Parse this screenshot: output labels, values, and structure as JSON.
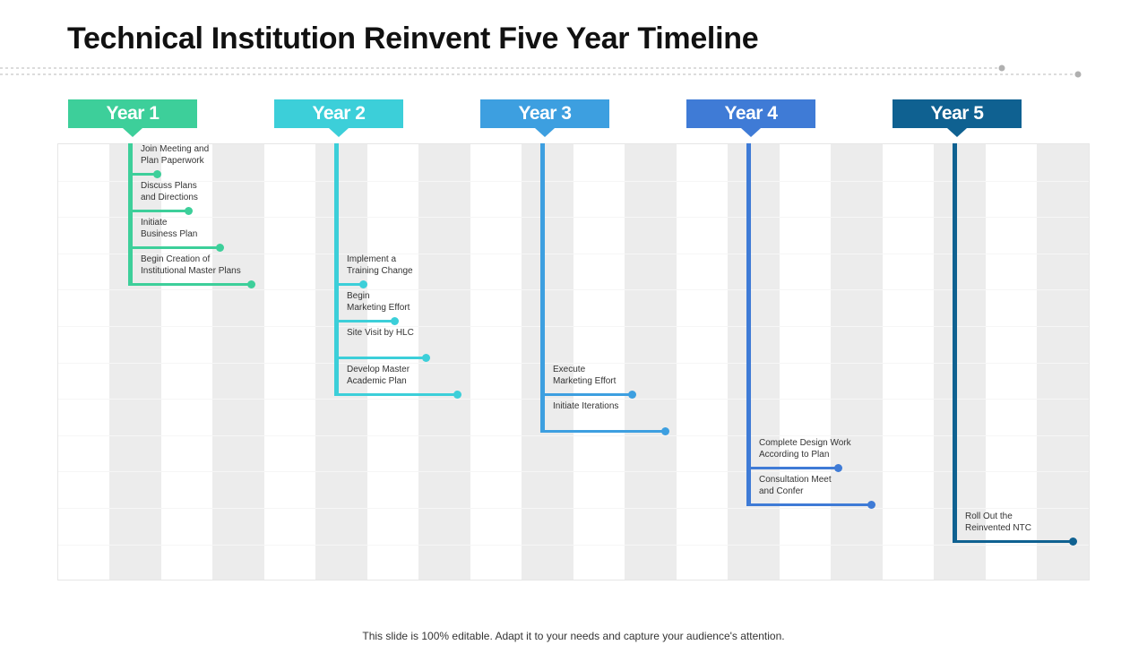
{
  "title": "Technical Institution Reinvent Five Year Timeline",
  "footer": "This slide is 100% editable. Adapt it to your needs and capture your audience's attention.",
  "years": [
    {
      "label": "Year 1",
      "color": "#3dcf9a",
      "tasks": [
        "Join Meeting and\nPlan Paperwork",
        "Discuss Plans\nand Directions",
        "Initiate\nBusiness Plan",
        "Begin Creation of\nInstitutional Master Plans"
      ]
    },
    {
      "label": "Year 2",
      "color": "#3ccfd9",
      "tasks": [
        "Implement  a\nTraining Change",
        "Begin\nMarketing Effort",
        "Site Visit by HLC",
        "Develop Master\nAcademic Plan"
      ]
    },
    {
      "label": "Year 3",
      "color": "#3d9fe0",
      "tasks": [
        "Execute\nMarketing Effort",
        "Initiate  Iterations"
      ]
    },
    {
      "label": "Year 4",
      "color": "#3f7bd6",
      "tasks": [
        "Complete  Design Work\nAccording to Plan",
        "Consultation Meet\nand Confer"
      ]
    },
    {
      "label": "Year 5",
      "color": "#0f6191",
      "tasks": [
        "Roll Out the\nReinvented NTC"
      ]
    }
  ]
}
